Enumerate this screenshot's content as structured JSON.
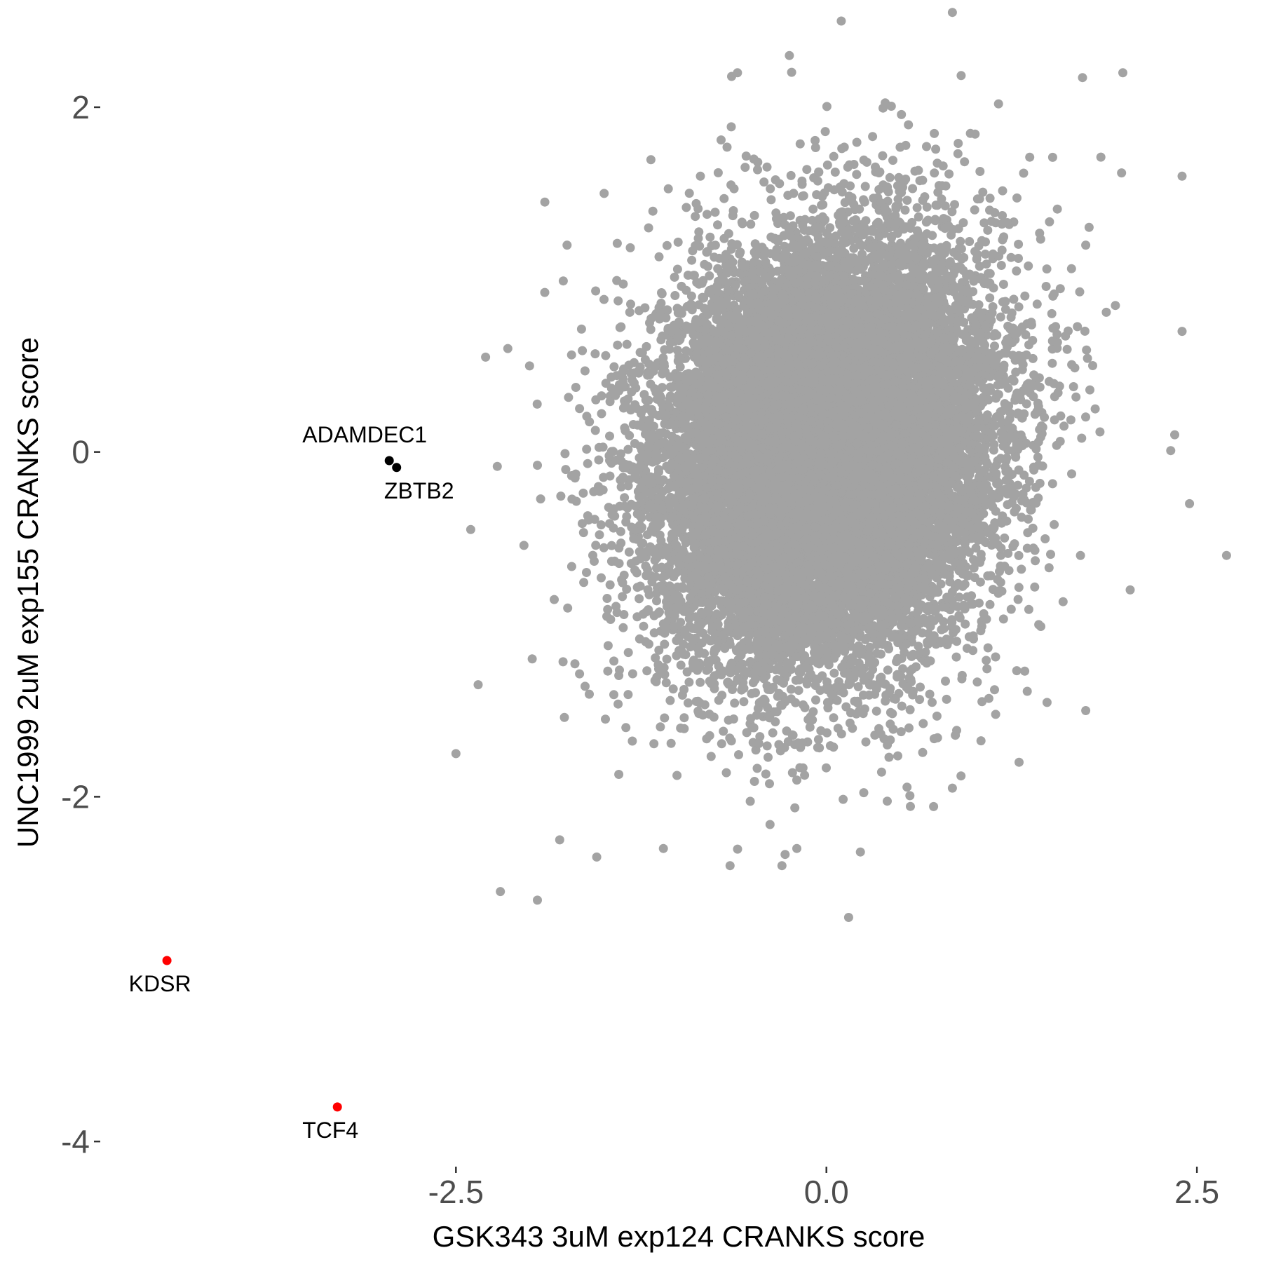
{
  "chart_data": {
    "type": "scatter",
    "xlabel": "GSK343 3uM exp124 CRANKS score",
    "ylabel": "UNC1999 2uM exp155 CRANKS score",
    "xlim": [
      -4.9,
      2.75
    ],
    "ylim": [
      -4.15,
      2.5
    ],
    "x_ticks": [
      -2.5,
      0.0,
      2.5
    ],
    "x_tick_labels": [
      "-2.5",
      "0.0",
      "2.5"
    ],
    "y_ticks": [
      -4,
      -2,
      0,
      2
    ],
    "y_tick_labels": [
      "-4",
      "-2",
      "0",
      "2"
    ],
    "grid": false,
    "colors": {
      "background_points": "#a3a3a3",
      "highlight_black": "#000000",
      "highlight_red": "#ff0000"
    },
    "background_cloud": {
      "description_points": "approximately 18000 genes, roughly bivariate normal",
      "center": [
        0.0,
        0.0
      ],
      "sd": [
        0.55,
        0.6
      ],
      "correlation": 0.15,
      "count": 18000,
      "outlier_points": [
        [
          2.7,
          -0.6
        ],
        [
          2.45,
          -0.3
        ],
        [
          2.4,
          0.7
        ],
        [
          2.4,
          1.6
        ],
        [
          2.0,
          2.2
        ],
        [
          1.75,
          1.2
        ],
        [
          0.85,
          2.55
        ],
        [
          0.1,
          2.5
        ],
        [
          -0.25,
          2.3
        ],
        [
          -0.6,
          2.2
        ],
        [
          -1.9,
          1.45
        ],
        [
          -1.75,
          1.2
        ],
        [
          -2.15,
          0.6
        ],
        [
          -2.3,
          0.55
        ],
        [
          -2.4,
          -0.45
        ],
        [
          -2.5,
          -1.75
        ],
        [
          -2.35,
          -1.35
        ],
        [
          -2.2,
          -2.55
        ],
        [
          -1.95,
          -2.6
        ],
        [
          -1.8,
          -2.25
        ],
        [
          -1.1,
          -2.3
        ],
        [
          -0.65,
          -2.4
        ],
        [
          -0.3,
          -2.4
        ],
        [
          0.15,
          -2.7
        ],
        [
          0.85,
          -1.95
        ],
        [
          1.3,
          -1.8
        ],
        [
          1.75,
          -1.5
        ],
        [
          2.05,
          -0.8
        ],
        [
          2.35,
          0.1
        ],
        [
          1.95,
          0.85
        ],
        [
          -1.5,
          1.5
        ],
        [
          -1.2,
          1.3
        ],
        [
          -0.2,
          -2.3
        ],
        [
          -1.55,
          -2.35
        ]
      ]
    },
    "highlighted_points": [
      {
        "label": "ADAMDEC1",
        "x": -2.95,
        "y": -0.05,
        "color": "#000000",
        "label_position": "above"
      },
      {
        "label": "ZBTB2",
        "x": -2.9,
        "y": -0.09,
        "color": "#000000",
        "label_position": "below"
      },
      {
        "label": "KDSR",
        "x": -4.45,
        "y": -2.95,
        "color": "#ff0000",
        "label_position": "below"
      },
      {
        "label": "TCF4",
        "x": -3.3,
        "y": -3.8,
        "color": "#ff0000",
        "label_position": "below"
      }
    ]
  }
}
